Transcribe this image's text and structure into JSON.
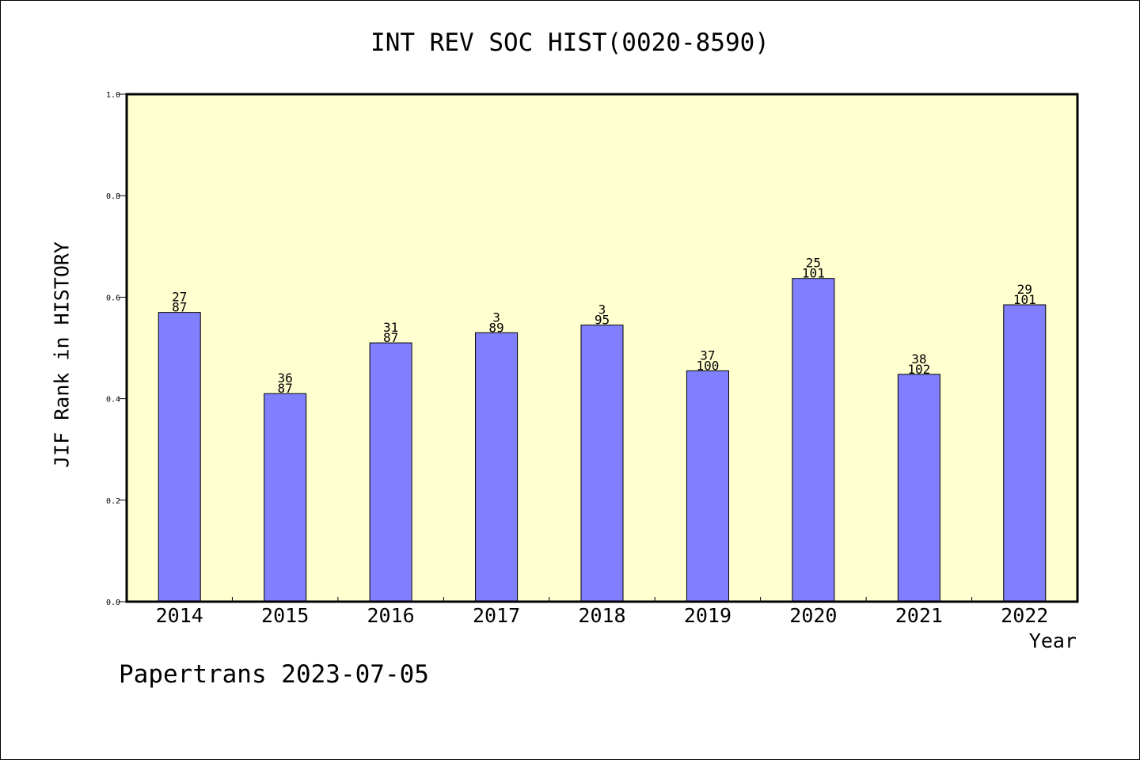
{
  "chart_data": {
    "type": "bar",
    "title": "INT REV SOC HIST(0020-8590)",
    "xlabel": "Year",
    "ylabel": "JIF Rank in HISTORY",
    "footer": "Papertrans 2023-07-05",
    "ylim": [
      0,
      1.0
    ],
    "yticks": [
      "0.0",
      "0.2",
      "0.4",
      "0.6",
      "0.8",
      "1.0"
    ],
    "categories": [
      "2014",
      "2015",
      "2016",
      "2017",
      "2018",
      "2019",
      "2020",
      "2021",
      "2022"
    ],
    "values": [
      0.57,
      0.41,
      0.51,
      0.53,
      0.545,
      0.455,
      0.637,
      0.448,
      0.585
    ],
    "rank": [
      "27",
      "36",
      "31",
      "3",
      "3",
      "37",
      "25",
      "38",
      "29"
    ],
    "total": [
      "87",
      "87",
      "87",
      "89",
      "95",
      "100",
      "101",
      "102",
      "101"
    ],
    "colors": {
      "plot_background": "#ffffd0",
      "bar": "#8080ff",
      "bar_edge": "#000000"
    }
  }
}
